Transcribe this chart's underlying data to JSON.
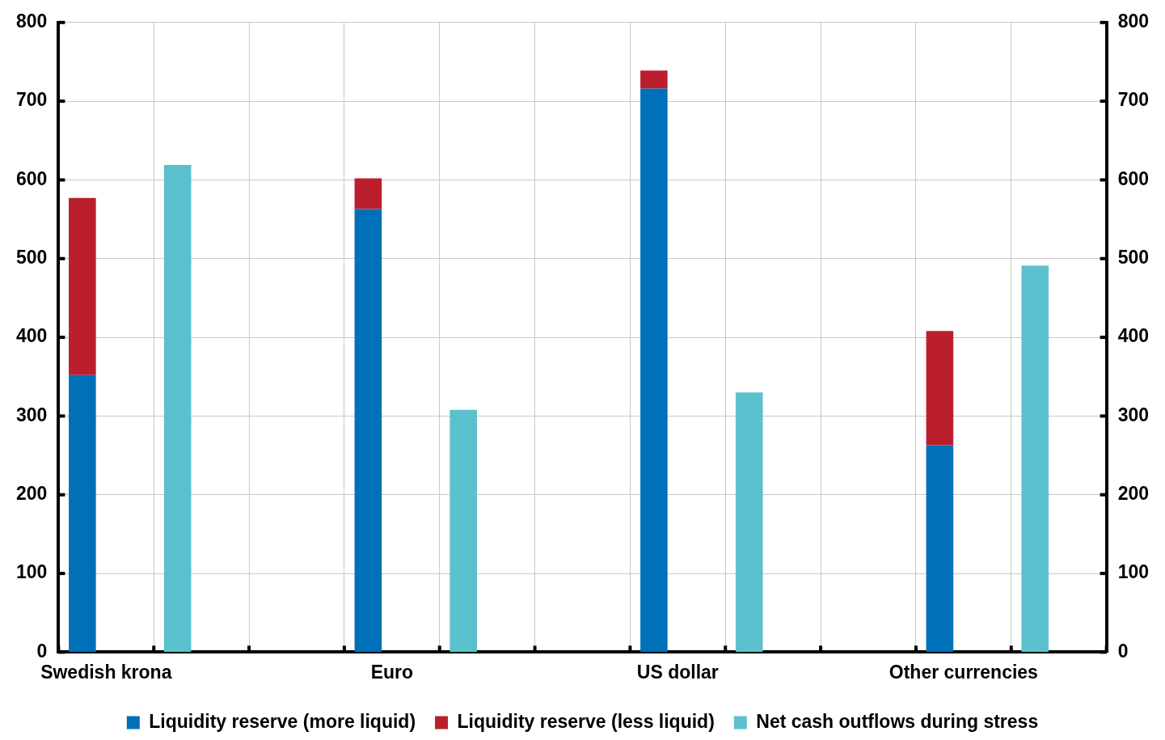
{
  "chart_data": {
    "type": "bar",
    "stacked": true,
    "categories": [
      "Swedish krona",
      null,
      null,
      "Euro",
      null,
      null,
      "US dollar",
      null,
      null,
      "Other currencies",
      null
    ],
    "series": [
      {
        "name": "Liquidity reserve (more liquid)",
        "color": "#0070b8",
        "values": [
          352,
          null,
          null,
          563,
          null,
          null,
          716,
          null,
          null,
          263,
          null
        ]
      },
      {
        "name": "Liquidity reserve (less liquid)",
        "color": "#bc1f2c",
        "values": [
          225,
          null,
          null,
          39,
          null,
          null,
          23,
          null,
          null,
          145,
          null
        ]
      },
      {
        "name": "Net cash outflows during stress",
        "color": "#5bc0ce",
        "values": [
          null,
          619,
          null,
          null,
          308,
          null,
          null,
          330,
          null,
          null,
          491
        ]
      }
    ],
    "ylim": [
      0,
      800
    ],
    "yticks": [
      0,
      100,
      200,
      300,
      400,
      500,
      600,
      700,
      800
    ],
    "y2lim": [
      0,
      800
    ],
    "y2ticks": [
      0,
      100,
      200,
      300,
      400,
      500,
      600,
      700,
      800
    ],
    "grid": true,
    "legend": "bottom"
  }
}
